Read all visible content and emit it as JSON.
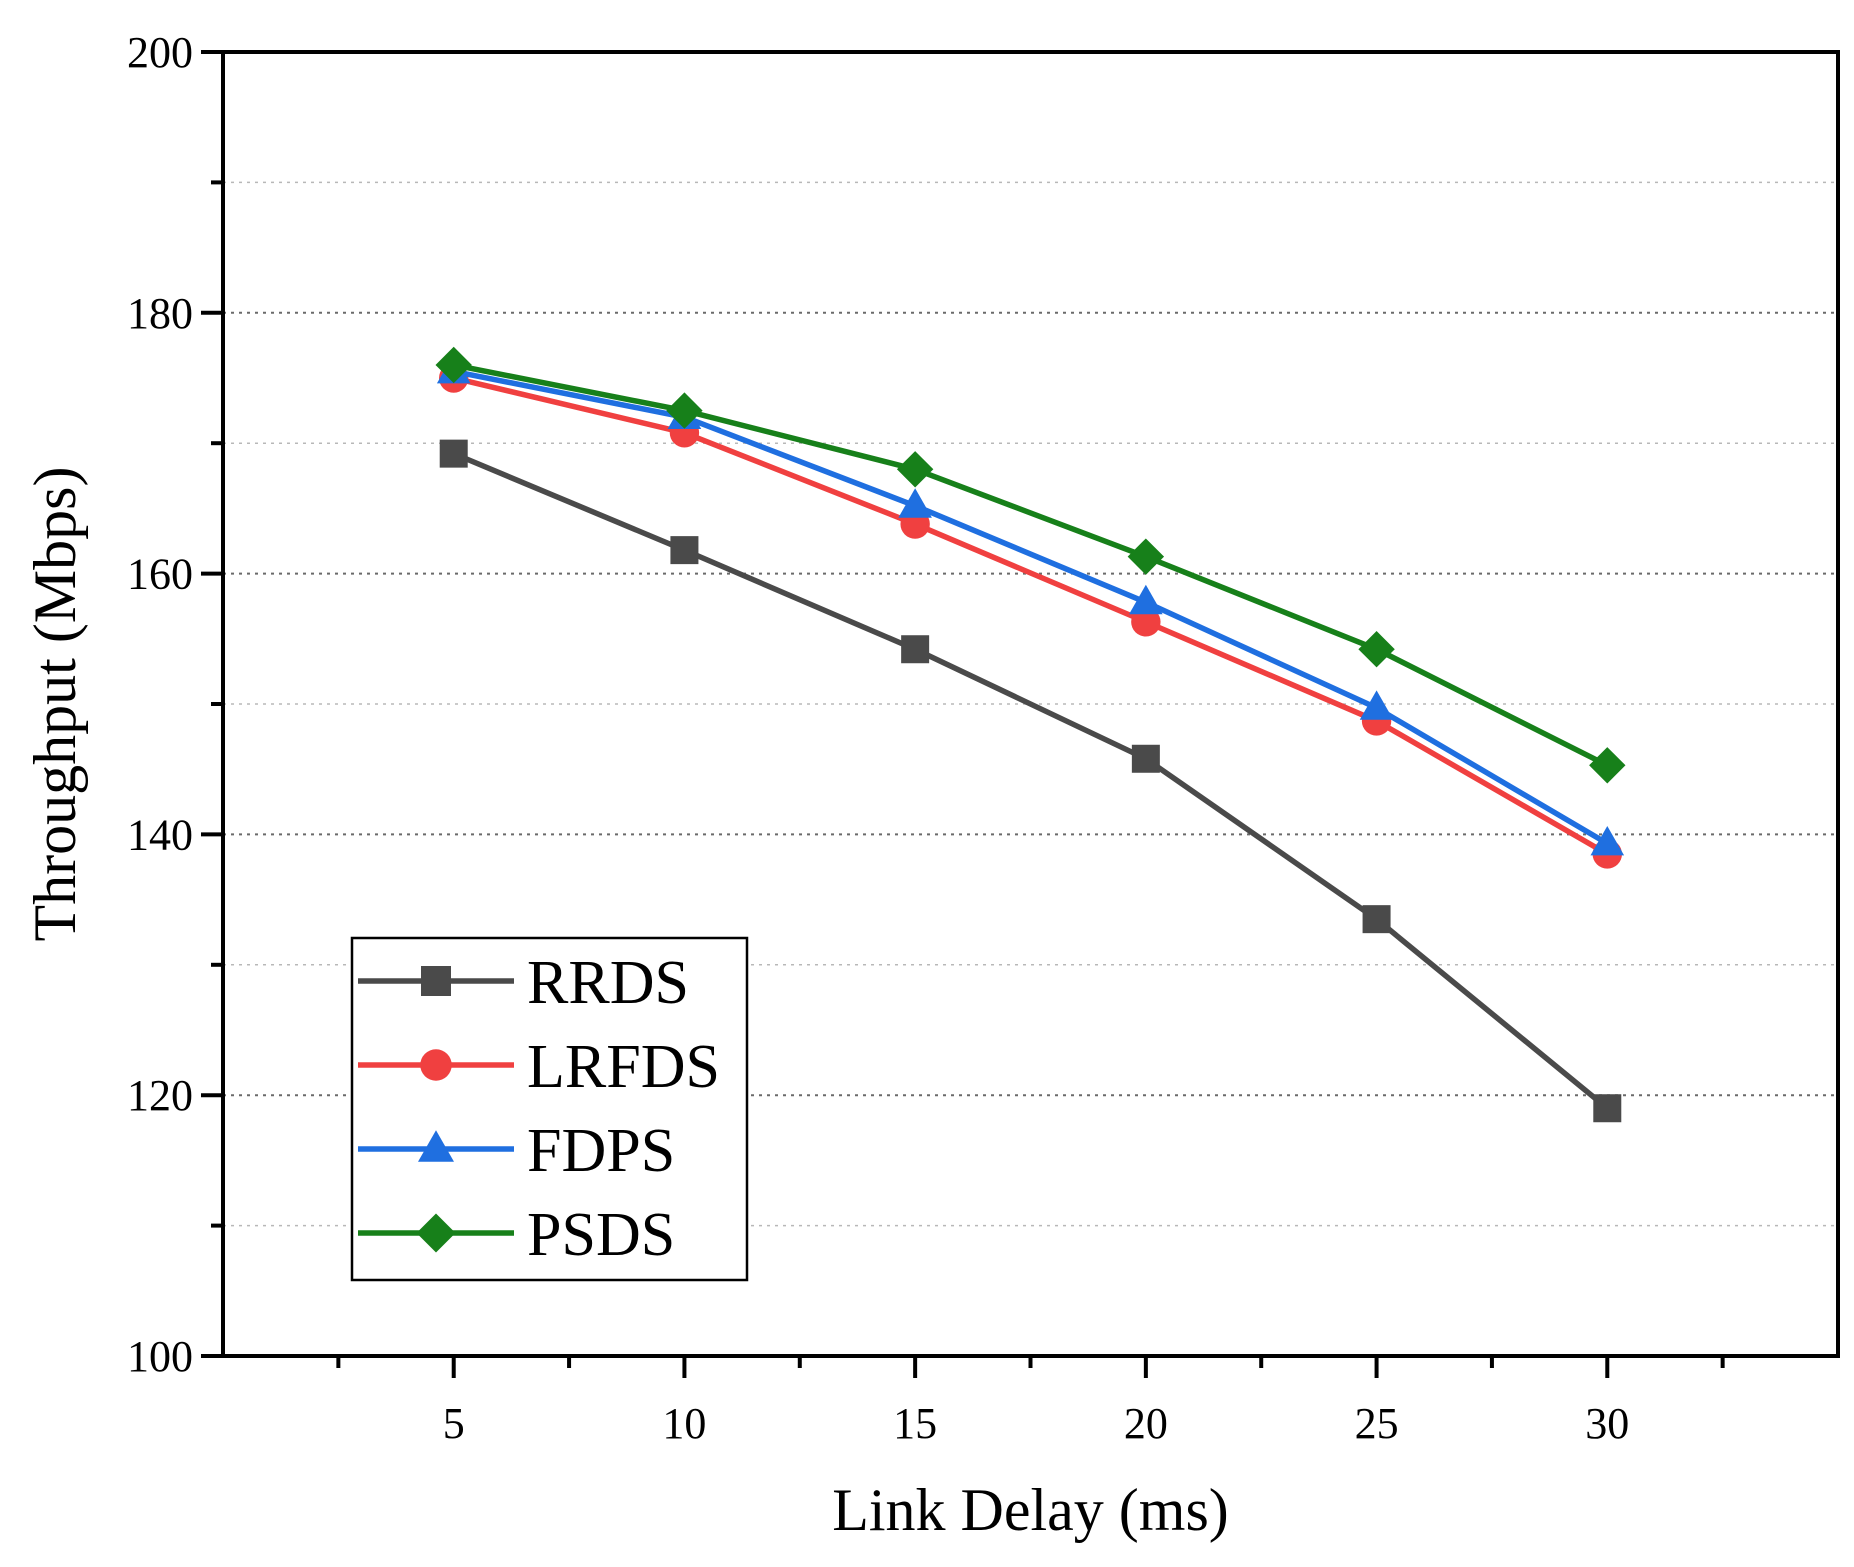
{
  "chart_data": {
    "type": "line",
    "title": "",
    "xlabel": "Link Delay (ms)",
    "ylabel": "Throughput (Mbps)",
    "xlim": [
      0,
      35
    ],
    "ylim": [
      100,
      200
    ],
    "x": [
      5,
      10,
      15,
      20,
      25,
      30
    ],
    "x_ticks": [
      "5",
      "10",
      "15",
      "20",
      "25",
      "30"
    ],
    "y_ticks": [
      "100",
      "120",
      "140",
      "160",
      "180",
      "200"
    ],
    "y_minor_grid": [
      110,
      130,
      150,
      170,
      190
    ],
    "grid": true,
    "legend_position": "bottom-left",
    "series": [
      {
        "name": "RRDS",
        "color": "#4a4a4a",
        "marker": "square",
        "values": [
          169.2,
          161.8,
          154.2,
          145.8,
          133.5,
          119.0
        ]
      },
      {
        "name": "LRFDS",
        "color": "#f04040",
        "marker": "circle",
        "values": [
          175.0,
          170.8,
          163.8,
          156.3,
          148.7,
          138.5
        ]
      },
      {
        "name": "FDPS",
        "color": "#1f6fe0",
        "marker": "triangle",
        "values": [
          175.5,
          172.0,
          165.2,
          157.8,
          149.7,
          139.3
        ]
      },
      {
        "name": "PSDS",
        "color": "#17801a",
        "marker": "diamond",
        "values": [
          176.0,
          172.5,
          168.0,
          161.3,
          154.2,
          145.3
        ]
      }
    ]
  }
}
